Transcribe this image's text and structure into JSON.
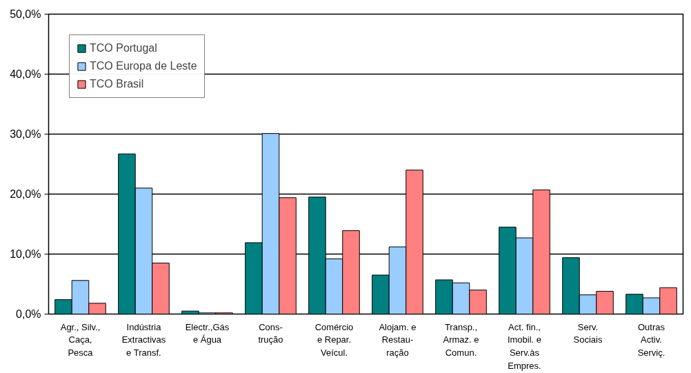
{
  "chart_data": {
    "type": "bar",
    "categories": [
      "Agr., Silv.,\nCaça,\nPesca",
      "Indústria\nExtractivas\ne Transf.",
      "Electr.,Gás\ne Água",
      "Cons-\ntrução",
      "Comércio\ne Repar.\nVeícul.",
      "Alojam. e\nRestau-\nração",
      "Transp.,\nArmaz. e\nComun.",
      "Act. fin.,\nImobil. e\nServ.às\nEmpres.",
      "Serv.\nSociais",
      "Outras\nActiv.\nServiç."
    ],
    "series": [
      {
        "name": "TCO Portugal",
        "color": "#008080",
        "values": [
          2.4,
          26.7,
          0.5,
          11.9,
          19.5,
          6.5,
          5.7,
          14.5,
          9.4,
          3.3
        ]
      },
      {
        "name": "TCO Europa de Leste",
        "color": "#99ccff",
        "values": [
          5.6,
          21.0,
          0.2,
          30.1,
          9.2,
          11.2,
          5.2,
          12.7,
          3.2,
          2.7
        ]
      },
      {
        "name": "TCO Brasil",
        "color": "#ff8080",
        "values": [
          1.8,
          8.5,
          0.2,
          19.4,
          13.9,
          24.0,
          4.0,
          20.7,
          3.8,
          4.4
        ]
      }
    ],
    "ylim": [
      0,
      50
    ],
    "yticks": [
      {
        "value": 0,
        "label": "0,0%"
      },
      {
        "value": 10,
        "label": "10,0%"
      },
      {
        "value": 20,
        "label": "20,0%"
      },
      {
        "value": 30,
        "label": "30,0%"
      },
      {
        "value": 40,
        "label": "40,0%"
      },
      {
        "value": 50,
        "label": "50,0%"
      }
    ],
    "grid": "y",
    "legend": "top left"
  }
}
